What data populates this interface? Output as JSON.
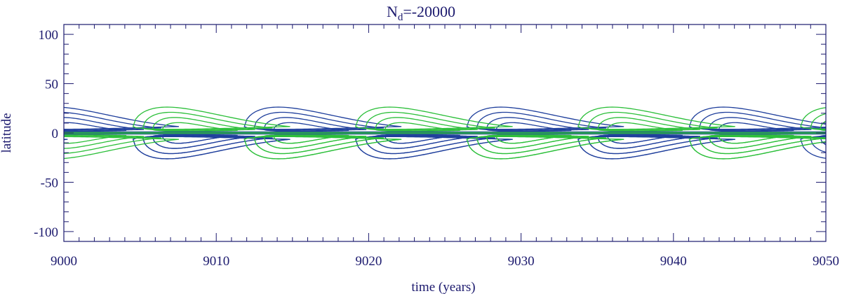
{
  "chart_data": {
    "type": "line",
    "title_main": "N",
    "title_sub": "d",
    "title_rest": "=-20000",
    "xlabel": "time (years)",
    "ylabel": "latitude",
    "xlim": [
      9000,
      9050
    ],
    "ylim": [
      -110,
      110
    ],
    "x_ticks": [
      9000,
      9010,
      9020,
      9030,
      9040,
      9050
    ],
    "x_tick_labels": [
      "9000",
      "9010",
      "9020",
      "9030",
      "9040",
      "9050"
    ],
    "y_ticks": [
      -100,
      -50,
      0,
      50,
      100
    ],
    "y_tick_labels": [
      "-100",
      "-50",
      "0",
      "50",
      "100"
    ],
    "x_minor_step": 1,
    "y_minor_step": 10,
    "grid": false,
    "colors": {
      "axis": "#1c1a6e",
      "positive": "#1f3f9c",
      "negative": "#2cbf3a"
    },
    "cycle_period_years": 14.6,
    "series": [
      {
        "color_role": "positive",
        "contour_levels": 4,
        "wing_centers_x": [
          9000.9,
          9015.5,
          9030.1,
          9044.7
        ],
        "lat_inner": [
          2,
          4,
          7,
          10
        ],
        "lat_outer": [
          12,
          18,
          24,
          30
        ],
        "lat_lobe": [
          8,
          11,
          15,
          20
        ]
      },
      {
        "color_role": "negative",
        "contour_levels": 4,
        "wing_centers_x": [
          9008.2,
          9022.8,
          9037.4,
          9052.0
        ],
        "lat_inner": [
          2,
          4,
          7,
          10
        ],
        "lat_outer": [
          12,
          18,
          24,
          30
        ],
        "lat_lobe": [
          8,
          11,
          15,
          20
        ]
      }
    ]
  }
}
